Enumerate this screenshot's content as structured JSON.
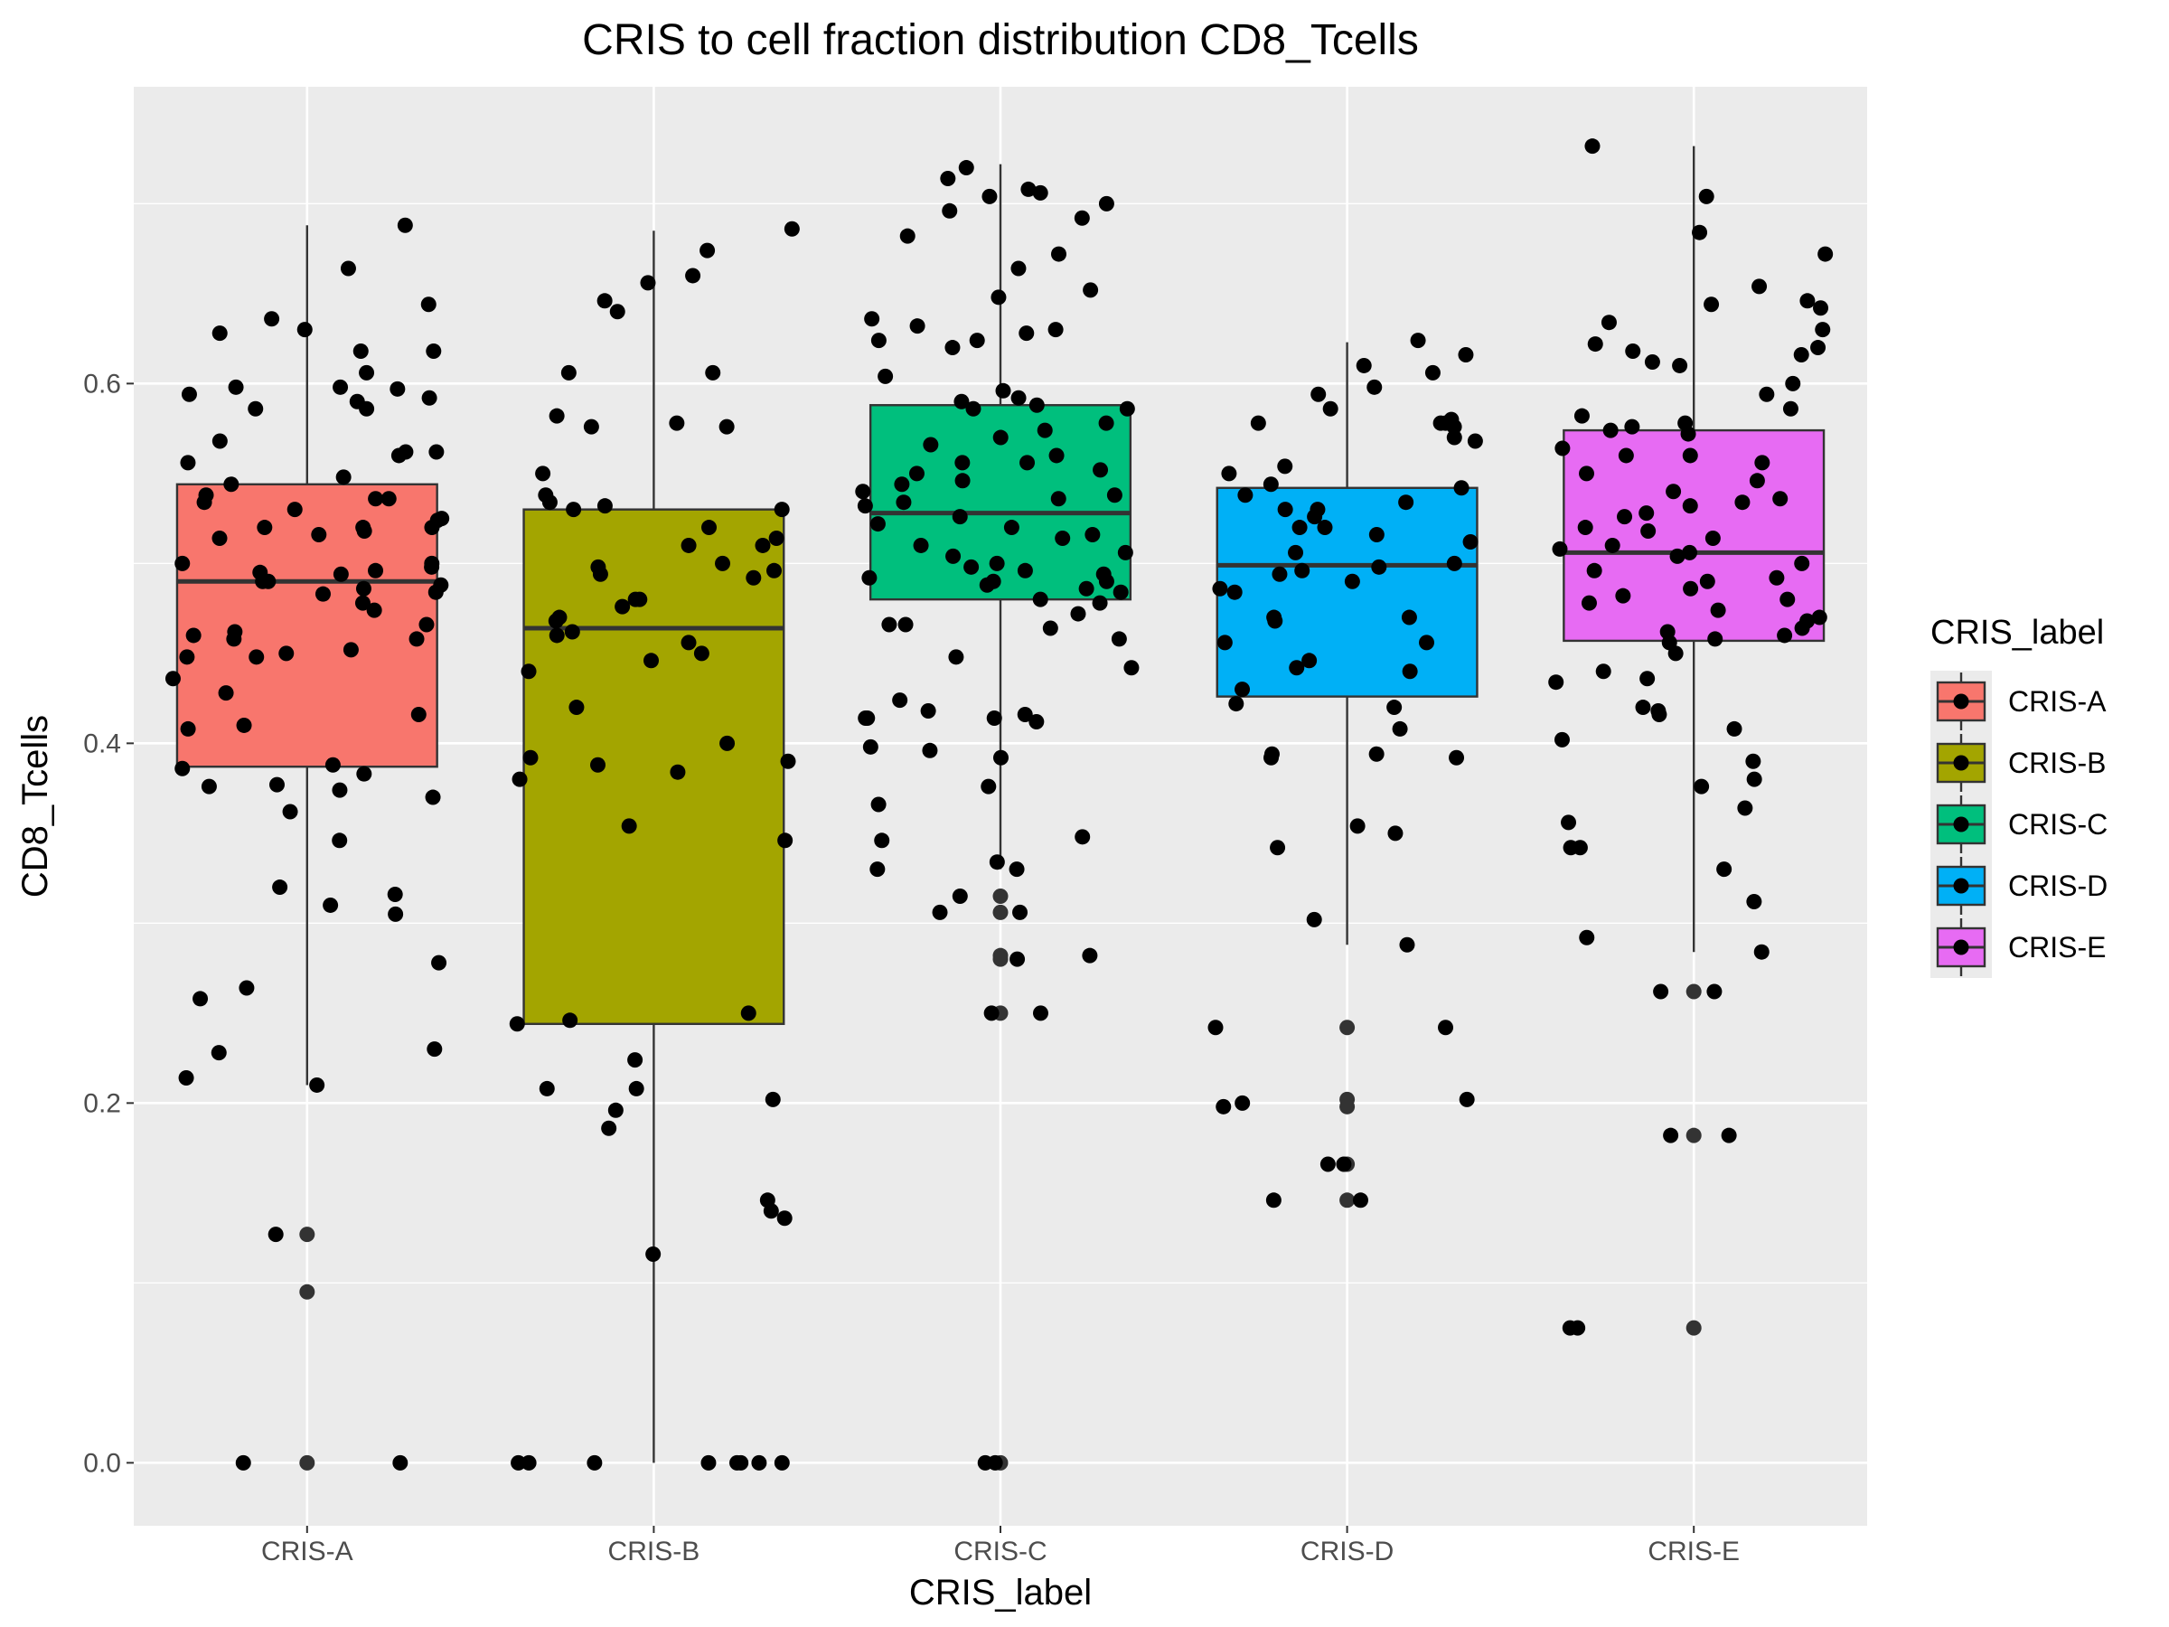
{
  "chart_data": {
    "type": "box",
    "title": "CRIS to cell fraction distribution CD8_Tcells",
    "xlabel": "CRIS_label",
    "ylabel": "CD8_Tcells",
    "categories": [
      "CRIS-A",
      "CRIS-B",
      "CRIS-C",
      "CRIS-D",
      "CRIS-E"
    ],
    "ylim": [
      -0.035,
      0.765
    ],
    "yticks": [
      0.0,
      0.2,
      0.4,
      0.6
    ],
    "ytick_labels": [
      "0.0",
      "0.2",
      "0.4",
      "0.6"
    ],
    "grid": true,
    "legend": {
      "title": "CRIS_label",
      "position": "right",
      "entries": [
        "CRIS-A",
        "CRIS-B",
        "CRIS-C",
        "CRIS-D",
        "CRIS-E"
      ]
    },
    "colors": {
      "CRIS-A": "#F8766D",
      "CRIS-B": "#A3A500",
      "CRIS-C": "#00BF7D",
      "CRIS-D": "#00B0F6",
      "CRIS-E": "#E76BF3"
    },
    "boxes": [
      {
        "name": "CRIS-A",
        "lower_whisker": 0.21,
        "q1": 0.387,
        "median": 0.49,
        "q3": 0.544,
        "upper_whisker": 0.688
      },
      {
        "name": "CRIS-B",
        "lower_whisker": 0.0,
        "q1": 0.244,
        "median": 0.464,
        "q3": 0.53,
        "upper_whisker": 0.685
      },
      {
        "name": "CRIS-C",
        "lower_whisker": 0.33,
        "q1": 0.48,
        "median": 0.528,
        "q3": 0.588,
        "upper_whisker": 0.722
      },
      {
        "name": "CRIS-D",
        "lower_whisker": 0.288,
        "q1": 0.426,
        "median": 0.499,
        "q3": 0.542,
        "upper_whisker": 0.623
      },
      {
        "name": "CRIS-E",
        "lower_whisker": 0.284,
        "q1": 0.457,
        "median": 0.506,
        "q3": 0.574,
        "upper_whisker": 0.732
      }
    ],
    "outliers": [
      {
        "name": "CRIS-A",
        "values": [
          0.127,
          0.095,
          0.0
        ]
      },
      {
        "name": "CRIS-B",
        "values": []
      },
      {
        "name": "CRIS-C",
        "values": [
          0.315,
          0.306,
          0.282,
          0.28,
          0.25,
          0.0
        ]
      },
      {
        "name": "CRIS-D",
        "values": [
          0.242,
          0.202,
          0.198,
          0.166,
          0.146
        ]
      },
      {
        "name": "CRIS-E",
        "values": [
          0.262,
          0.182,
          0.075
        ]
      }
    ],
    "points": [
      {
        "name": "CRIS-A",
        "values": [
          0.598,
          0.594,
          0.59,
          0.586,
          0.568,
          0.562,
          0.556,
          0.548,
          0.538,
          0.53,
          0.525,
          0.52,
          0.518,
          0.514,
          0.5,
          0.498,
          0.495,
          0.49,
          0.488,
          0.483,
          0.478,
          0.474,
          0.466,
          0.462,
          0.458,
          0.452,
          0.448,
          0.436,
          0.428,
          0.41,
          0.408,
          0.388,
          0.386,
          0.383,
          0.377,
          0.376,
          0.374,
          0.37,
          0.362,
          0.346,
          0.32,
          0.316,
          0.31,
          0.305,
          0.278,
          0.264,
          0.258,
          0.23,
          0.228,
          0.214,
          0.21,
          0.127,
          0.0,
          0.0,
          0.688,
          0.664,
          0.644,
          0.636,
          0.63,
          0.628,
          0.618,
          0.618,
          0.606,
          0.598,
          0.597,
          0.592,
          0.586,
          0.56,
          0.562,
          0.544,
          0.536,
          0.536,
          0.534,
          0.524,
          0.52,
          0.52,
          0.516,
          0.5,
          0.496,
          0.494,
          0.49,
          0.486,
          0.484,
          0.46,
          0.458,
          0.45,
          0.448,
          0.416
        ]
      },
      {
        "name": "CRIS-B",
        "values": [
          0.686,
          0.674,
          0.66,
          0.656,
          0.646,
          0.64,
          0.606,
          0.606,
          0.582,
          0.578,
          0.576,
          0.576,
          0.55,
          0.538,
          0.534,
          0.532,
          0.53,
          0.53,
          0.52,
          0.514,
          0.51,
          0.51,
          0.5,
          0.498,
          0.496,
          0.494,
          0.492,
          0.48,
          0.48,
          0.476,
          0.47,
          0.468,
          0.462,
          0.46,
          0.456,
          0.45,
          0.446,
          0.44,
          0.42,
          0.4,
          0.392,
          0.39,
          0.388,
          0.384,
          0.38,
          0.354,
          0.346,
          0.25,
          0.246,
          0.244,
          0.224,
          0.208,
          0.208,
          0.202,
          0.196,
          0.186,
          0.146,
          0.14,
          0.136,
          0.116,
          0.0,
          0.0,
          0.0,
          0.0,
          0.0,
          0.0,
          0.0,
          0.0
        ]
      },
      {
        "name": "CRIS-C",
        "values": [
          0.72,
          0.714,
          0.708,
          0.706,
          0.704,
          0.7,
          0.696,
          0.692,
          0.682,
          0.672,
          0.664,
          0.652,
          0.648,
          0.636,
          0.632,
          0.63,
          0.628,
          0.624,
          0.624,
          0.62,
          0.604,
          0.596,
          0.592,
          0.59,
          0.588,
          0.586,
          0.586,
          0.578,
          0.574,
          0.57,
          0.566,
          0.56,
          0.556,
          0.556,
          0.552,
          0.55,
          0.546,
          0.544,
          0.54,
          0.538,
          0.536,
          0.534,
          0.532,
          0.526,
          0.522,
          0.52,
          0.516,
          0.514,
          0.51,
          0.506,
          0.504,
          0.5,
          0.498,
          0.496,
          0.494,
          0.492,
          0.49,
          0.49,
          0.488,
          0.486,
          0.484,
          0.48,
          0.478,
          0.472,
          0.466,
          0.466,
          0.464,
          0.458,
          0.448,
          0.442,
          0.424,
          0.418,
          0.416,
          0.414,
          0.414,
          0.414,
          0.412,
          0.398,
          0.396,
          0.392,
          0.376,
          0.366,
          0.348,
          0.346,
          0.334,
          0.33,
          0.33,
          0.315,
          0.306,
          0.306,
          0.282,
          0.28,
          0.25,
          0.25,
          0.0,
          0.0
        ]
      },
      {
        "name": "CRIS-D",
        "values": [
          0.624,
          0.616,
          0.61,
          0.606,
          0.598,
          0.594,
          0.586,
          0.58,
          0.578,
          0.578,
          0.578,
          0.576,
          0.57,
          0.568,
          0.554,
          0.55,
          0.544,
          0.542,
          0.538,
          0.534,
          0.53,
          0.53,
          0.526,
          0.52,
          0.52,
          0.516,
          0.512,
          0.506,
          0.5,
          0.498,
          0.496,
          0.494,
          0.49,
          0.486,
          0.484,
          0.47,
          0.47,
          0.468,
          0.456,
          0.456,
          0.446,
          0.442,
          0.44,
          0.43,
          0.422,
          0.42,
          0.408,
          0.394,
          0.394,
          0.392,
          0.392,
          0.354,
          0.35,
          0.342,
          0.302,
          0.288,
          0.242,
          0.242,
          0.202,
          0.2,
          0.198,
          0.166,
          0.166,
          0.146,
          0.146
        ]
      },
      {
        "name": "CRIS-E",
        "values": [
          0.732,
          0.704,
          0.684,
          0.672,
          0.654,
          0.646,
          0.644,
          0.642,
          0.634,
          0.63,
          0.622,
          0.62,
          0.618,
          0.616,
          0.612,
          0.61,
          0.6,
          0.594,
          0.586,
          0.582,
          0.578,
          0.576,
          0.574,
          0.572,
          0.564,
          0.56,
          0.56,
          0.556,
          0.55,
          0.546,
          0.54,
          0.536,
          0.534,
          0.532,
          0.528,
          0.526,
          0.52,
          0.518,
          0.514,
          0.51,
          0.508,
          0.506,
          0.504,
          0.5,
          0.496,
          0.492,
          0.49,
          0.486,
          0.482,
          0.48,
          0.478,
          0.474,
          0.47,
          0.468,
          0.464,
          0.462,
          0.46,
          0.458,
          0.456,
          0.45,
          0.44,
          0.436,
          0.434,
          0.42,
          0.418,
          0.416,
          0.408,
          0.402,
          0.39,
          0.38,
          0.376,
          0.364,
          0.356,
          0.342,
          0.342,
          0.33,
          0.312,
          0.292,
          0.284,
          0.262,
          0.262,
          0.182,
          0.182,
          0.075,
          0.075
        ]
      }
    ]
  }
}
